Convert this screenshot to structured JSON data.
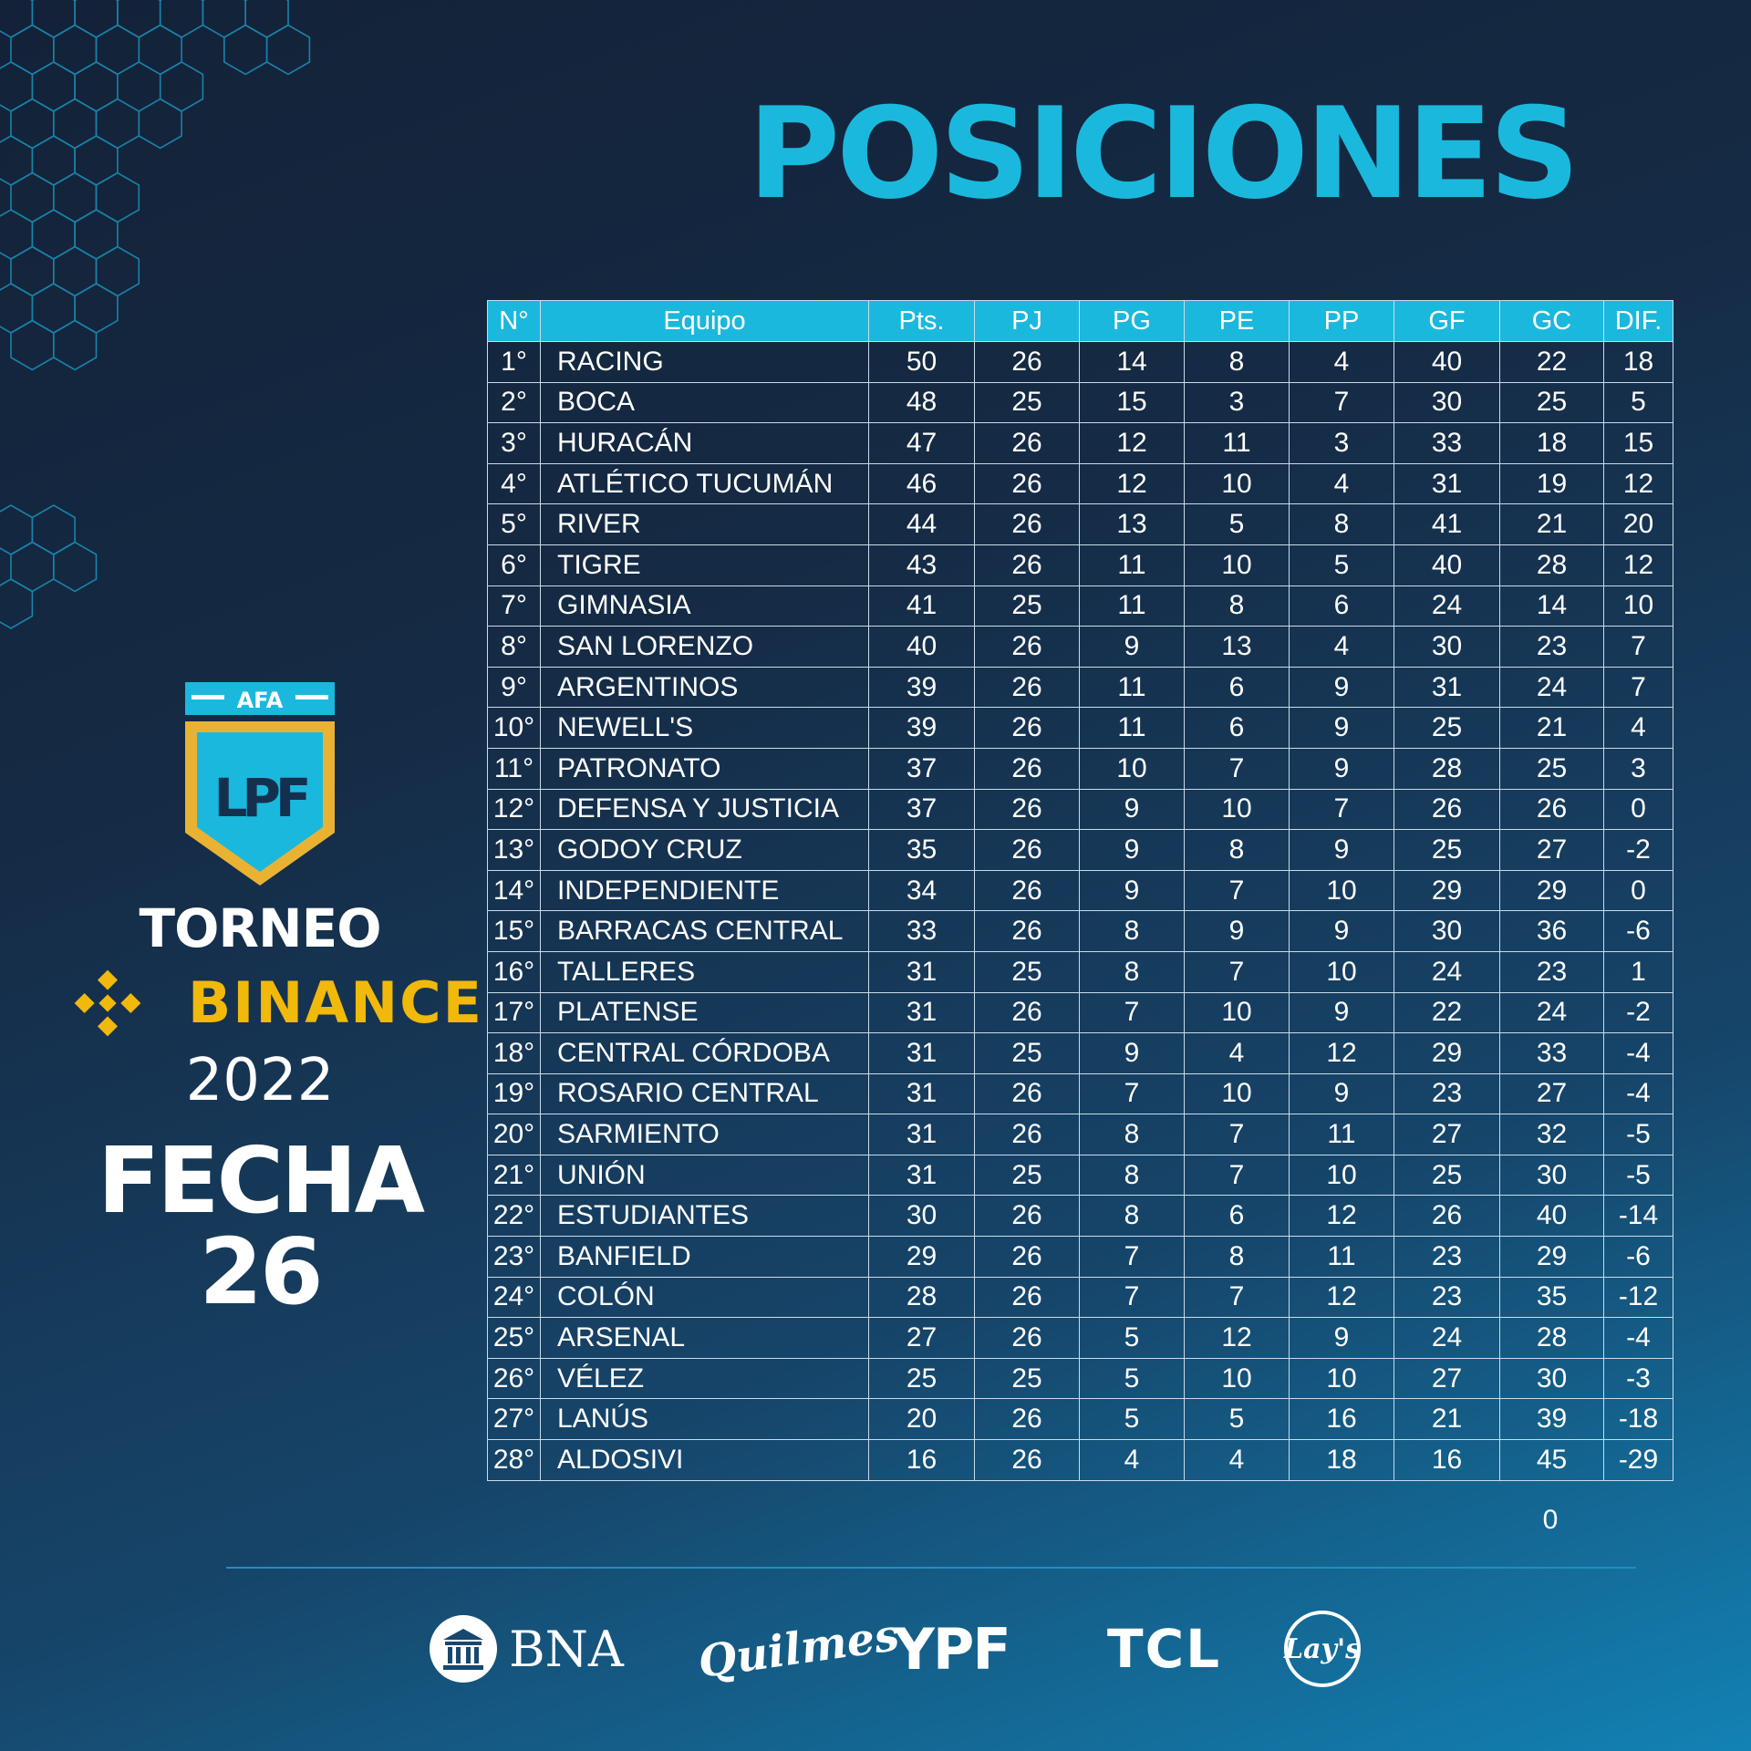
{
  "title": "POSICIONES",
  "badge": {
    "afa": "AFA",
    "logo": "LPF"
  },
  "brand": {
    "torneo": "TORNEO",
    "binance": "BINANCE",
    "year": "2022",
    "fecha": "FECHA 26"
  },
  "colors": {
    "accent": "#1bb8dd",
    "binance_gold": "#f0b90b"
  },
  "table": {
    "headers": [
      "N°",
      "Equipo",
      "Pts.",
      "PJ",
      "PG",
      "PE",
      "PP",
      "GF",
      "GC",
      "DIF."
    ],
    "rows": [
      [
        "1°",
        "RACING",
        "50",
        "26",
        "14",
        "8",
        "4",
        "40",
        "22",
        "18"
      ],
      [
        "2°",
        "BOCA",
        "48",
        "25",
        "15",
        "3",
        "7",
        "30",
        "25",
        "5"
      ],
      [
        "3°",
        "HURACÁN",
        "47",
        "26",
        "12",
        "11",
        "3",
        "33",
        "18",
        "15"
      ],
      [
        "4°",
        "ATLÉTICO TUCUMÁN",
        "46",
        "26",
        "12",
        "10",
        "4",
        "31",
        "19",
        "12"
      ],
      [
        "5°",
        "RIVER",
        "44",
        "26",
        "13",
        "5",
        "8",
        "41",
        "21",
        "20"
      ],
      [
        "6°",
        "TIGRE",
        "43",
        "26",
        "11",
        "10",
        "5",
        "40",
        "28",
        "12"
      ],
      [
        "7°",
        "GIMNASIA",
        "41",
        "25",
        "11",
        "8",
        "6",
        "24",
        "14",
        "10"
      ],
      [
        "8°",
        "SAN LORENZO",
        "40",
        "26",
        "9",
        "13",
        "4",
        "30",
        "23",
        "7"
      ],
      [
        "9°",
        "ARGENTINOS",
        "39",
        "26",
        "11",
        "6",
        "9",
        "31",
        "24",
        "7"
      ],
      [
        "10°",
        "NEWELL'S",
        "39",
        "26",
        "11",
        "6",
        "9",
        "25",
        "21",
        "4"
      ],
      [
        "11°",
        "PATRONATO",
        "37",
        "26",
        "10",
        "7",
        "9",
        "28",
        "25",
        "3"
      ],
      [
        "12°",
        "DEFENSA Y JUSTICIA",
        "37",
        "26",
        "9",
        "10",
        "7",
        "26",
        "26",
        "0"
      ],
      [
        "13°",
        "GODOY CRUZ",
        "35",
        "26",
        "9",
        "8",
        "9",
        "25",
        "27",
        "-2"
      ],
      [
        "14°",
        "INDEPENDIENTE",
        "34",
        "26",
        "9",
        "7",
        "10",
        "29",
        "29",
        "0"
      ],
      [
        "15°",
        "BARRACAS CENTRAL",
        "33",
        "26",
        "8",
        "9",
        "9",
        "30",
        "36",
        "-6"
      ],
      [
        "16°",
        "TALLERES",
        "31",
        "25",
        "8",
        "7",
        "10",
        "24",
        "23",
        "1"
      ],
      [
        "17°",
        "PLATENSE",
        "31",
        "26",
        "7",
        "10",
        "9",
        "22",
        "24",
        "-2"
      ],
      [
        "18°",
        "CENTRAL CÓRDOBA",
        "31",
        "25",
        "9",
        "4",
        "12",
        "29",
        "33",
        "-4"
      ],
      [
        "19°",
        "ROSARIO CENTRAL",
        "31",
        "26",
        "7",
        "10",
        "9",
        "23",
        "27",
        "-4"
      ],
      [
        "20°",
        "SARMIENTO",
        "31",
        "26",
        "8",
        "7",
        "11",
        "27",
        "32",
        "-5"
      ],
      [
        "21°",
        "UNIÓN",
        "31",
        "25",
        "8",
        "7",
        "10",
        "25",
        "30",
        "-5"
      ],
      [
        "22°",
        "ESTUDIANTES",
        "30",
        "26",
        "8",
        "6",
        "12",
        "26",
        "40",
        "-14"
      ],
      [
        "23°",
        "BANFIELD",
        "29",
        "26",
        "7",
        "8",
        "11",
        "23",
        "29",
        "-6"
      ],
      [
        "24°",
        "COLÓN",
        "28",
        "26",
        "7",
        "7",
        "12",
        "23",
        "35",
        "-12"
      ],
      [
        "25°",
        "ARSENAL",
        "27",
        "26",
        "5",
        "12",
        "9",
        "24",
        "28",
        "-4"
      ],
      [
        "26°",
        "VÉLEZ",
        "25",
        "25",
        "5",
        "10",
        "10",
        "27",
        "30",
        "-3"
      ],
      [
        "27°",
        "LANÚS",
        "20",
        "26",
        "5",
        "5",
        "16",
        "21",
        "39",
        "-18"
      ],
      [
        "28°",
        "ALDOSIVI",
        "16",
        "26",
        "4",
        "4",
        "18",
        "16",
        "45",
        "-29"
      ]
    ],
    "extra_value": "0"
  },
  "sponsors": {
    "bna": "BNA",
    "quilmes": "Quilmes",
    "ypf": "YPF",
    "tcl": "TCL",
    "lays": "Lay's"
  }
}
